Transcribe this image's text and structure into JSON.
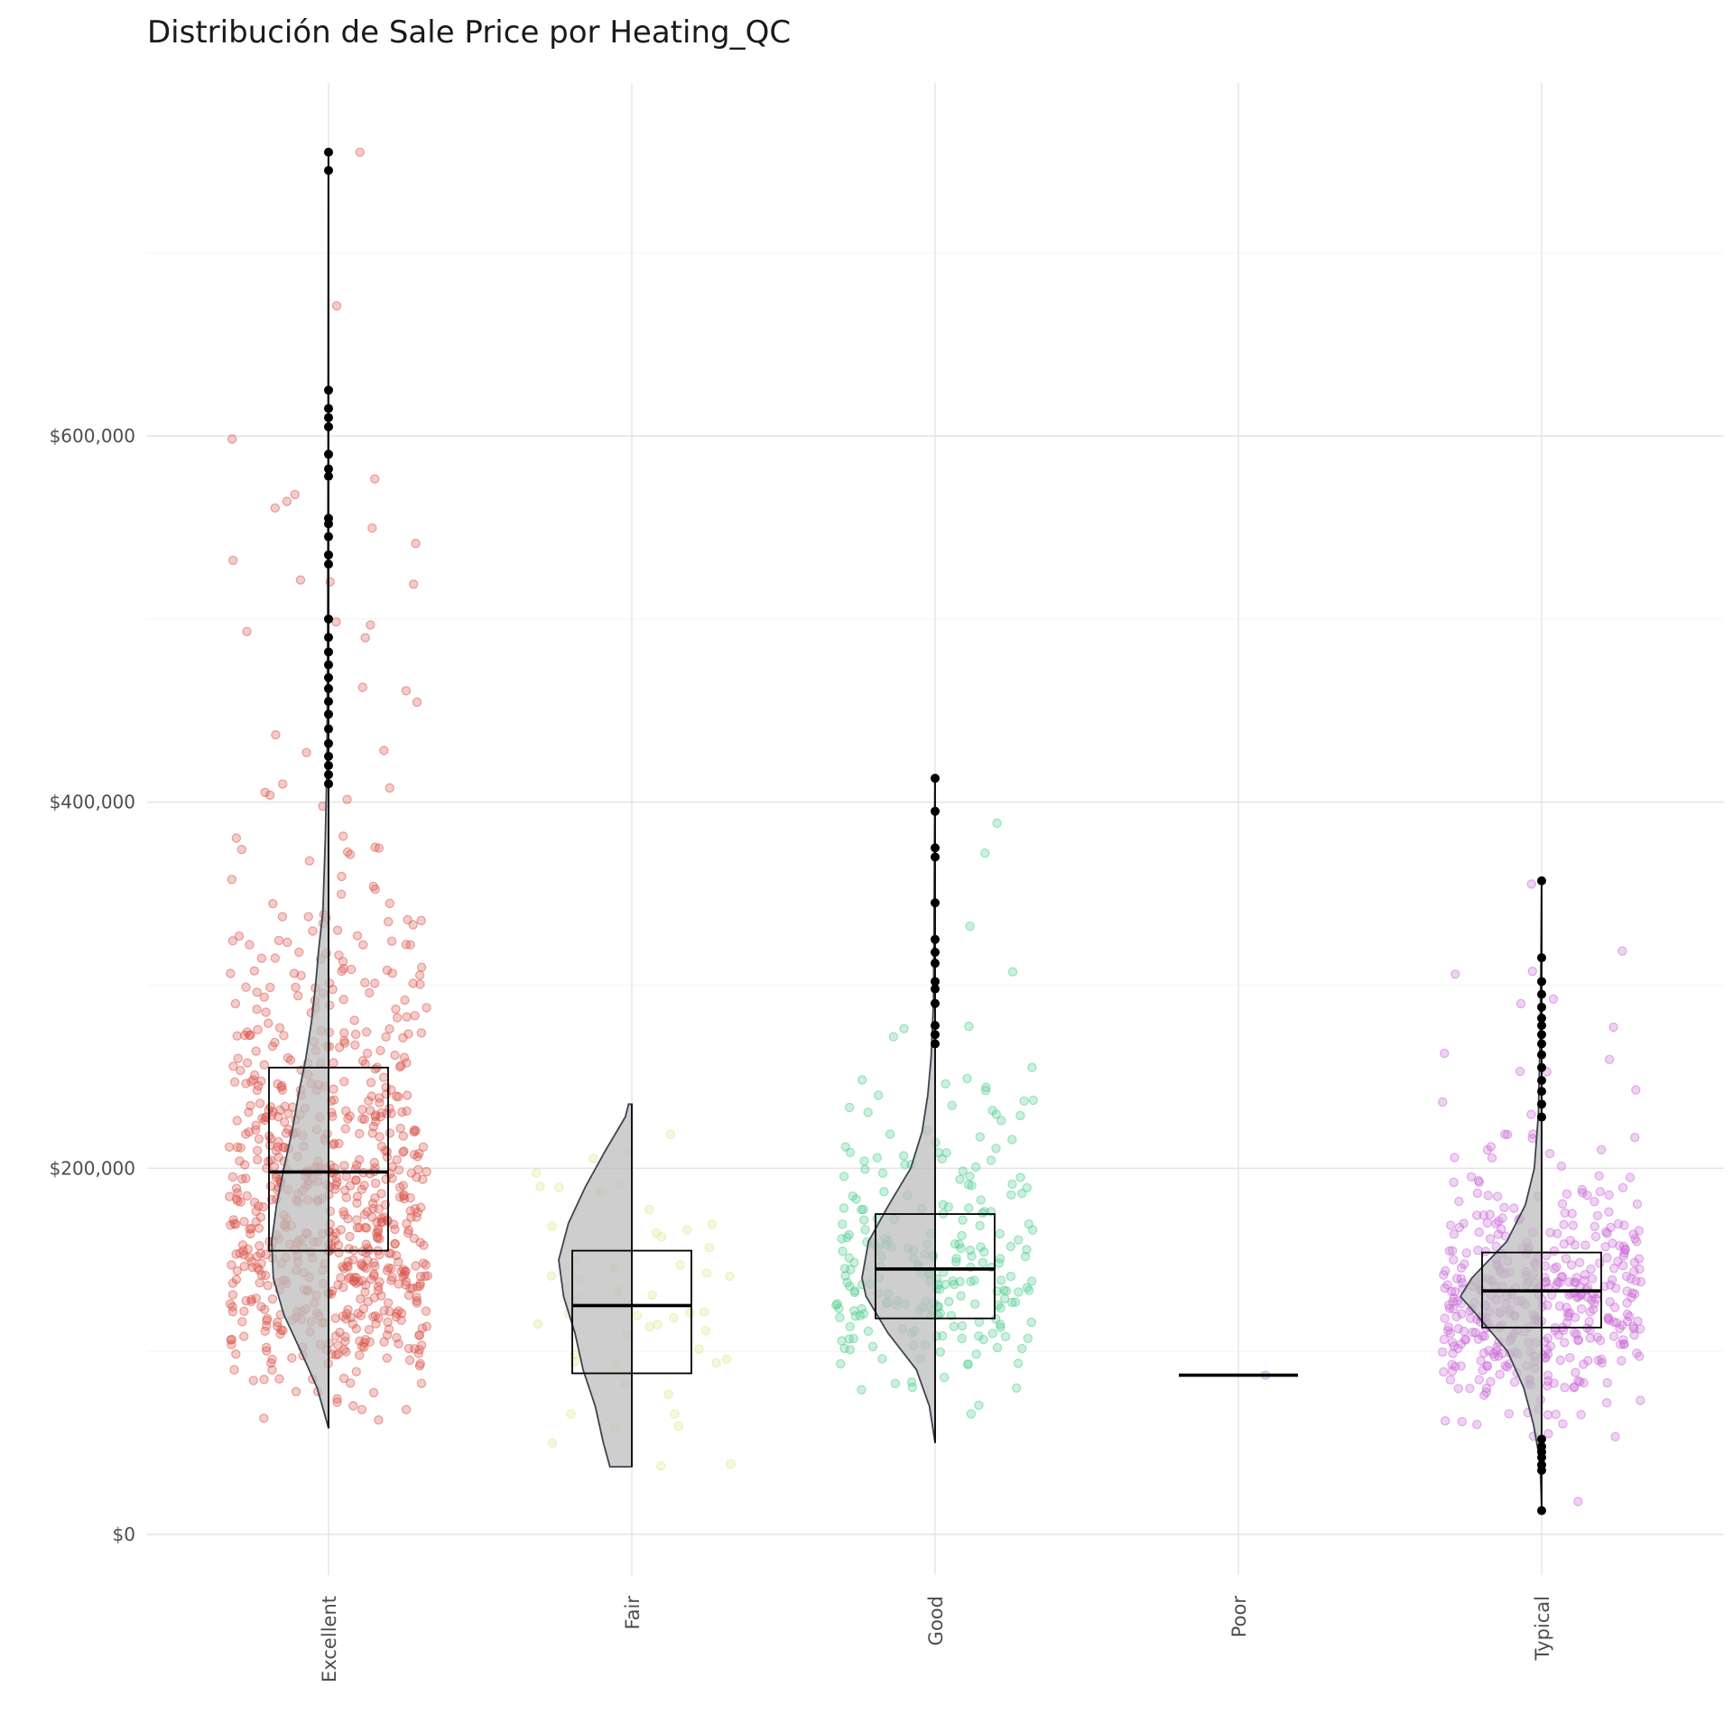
{
  "chart_data": {
    "type": "violin",
    "title": "Distribución de Sale Price por Heating_QC",
    "xlabel": "",
    "ylabel": "",
    "ylim": [
      -30000,
      755000
    ],
    "y_ticks": [
      {
        "value": 0,
        "label": "$0"
      },
      {
        "value": 200000,
        "label": "$200,000"
      },
      {
        "value": 400000,
        "label": "$400,000"
      },
      {
        "value": 600000,
        "label": "$600,000"
      }
    ],
    "y_minor_ticks": [
      100000,
      300000,
      500000,
      700000
    ],
    "grid": true,
    "legend": "none",
    "categories": [
      "Excellent",
      "Fair",
      "Good",
      "Poor",
      "Typical"
    ],
    "series": [
      {
        "category": "Excellent",
        "color": "#d9534a",
        "median": 198000,
        "q1": 155000,
        "q3": 255000,
        "min": 58000,
        "max": 755000,
        "outliers": [
          755000,
          745000,
          625000,
          615000,
          610000,
          605000,
          590000,
          582000,
          578000,
          555000,
          552000,
          545000,
          535000,
          530000,
          500000,
          490000,
          482000,
          475000,
          468000,
          462000,
          455000,
          448000,
          440000,
          432000,
          425000,
          420000,
          415000,
          410000
        ],
        "density": [
          [
            58000,
            0.0
          ],
          [
            80000,
            0.14
          ],
          [
            100000,
            0.34
          ],
          [
            120000,
            0.55
          ],
          [
            140000,
            0.68
          ],
          [
            160000,
            0.7
          ],
          [
            180000,
            0.64
          ],
          [
            200000,
            0.55
          ],
          [
            220000,
            0.45
          ],
          [
            240000,
            0.37
          ],
          [
            260000,
            0.28
          ],
          [
            280000,
            0.21
          ],
          [
            300000,
            0.16
          ],
          [
            320000,
            0.12
          ],
          [
            340000,
            0.07
          ],
          [
            380000,
            0.04
          ],
          [
            420000,
            0.02
          ],
          [
            500000,
            0.011
          ],
          [
            600000,
            0.007
          ],
          [
            755000,
            0.003
          ]
        ]
      },
      {
        "category": "Fair",
        "color": "#d9e88a",
        "median": 125000,
        "q1": 88000,
        "q3": 155000,
        "min": 37000,
        "max": 235000,
        "outliers": [],
        "density": [
          [
            37000,
            0.27
          ],
          [
            50000,
            0.35
          ],
          [
            70000,
            0.45
          ],
          [
            90000,
            0.6
          ],
          [
            110000,
            0.7
          ],
          [
            130000,
            0.84
          ],
          [
            150000,
            0.9
          ],
          [
            170000,
            0.78
          ],
          [
            190000,
            0.57
          ],
          [
            210000,
            0.32
          ],
          [
            228000,
            0.08
          ],
          [
            235000,
            0.04
          ]
        ]
      },
      {
        "category": "Good",
        "color": "#4fce8e",
        "median": 145000,
        "q1": 118000,
        "q3": 175000,
        "min": 50000,
        "max": 413000,
        "outliers": [
          413000,
          395000,
          375000,
          370000,
          345000,
          325000,
          318000,
          312000,
          302000,
          298000,
          290000,
          278000,
          273000,
          268000
        ],
        "density": [
          [
            50000,
            0.0
          ],
          [
            70000,
            0.07
          ],
          [
            90000,
            0.23
          ],
          [
            110000,
            0.58
          ],
          [
            130000,
            0.85
          ],
          [
            140000,
            0.9
          ],
          [
            160000,
            0.82
          ],
          [
            180000,
            0.57
          ],
          [
            200000,
            0.3
          ],
          [
            220000,
            0.16
          ],
          [
            240000,
            0.09
          ],
          [
            260000,
            0.05
          ],
          [
            290000,
            0.02
          ],
          [
            340000,
            0.012
          ],
          [
            380000,
            0.008
          ],
          [
            413000,
            0.003
          ]
        ]
      },
      {
        "category": "Poor",
        "color": "#8fa8d8",
        "median": 87000,
        "q1": 87000,
        "q3": 87000,
        "min": 87000,
        "max": 87000,
        "outliers": [],
        "density": []
      },
      {
        "category": "Typical",
        "color": "#c96ad6",
        "median": 133000,
        "q1": 113000,
        "q3": 154000,
        "min": 13000,
        "max": 357000,
        "outliers": [
          357000,
          315000,
          302000,
          295000,
          288000,
          282000,
          278000,
          273000,
          268000,
          262000,
          255000,
          248000,
          242000,
          235000,
          228000,
          52000,
          48000,
          45000,
          42000,
          38000,
          35000,
          13000
        ],
        "density": [
          [
            13000,
            0.0
          ],
          [
            40000,
            0.02
          ],
          [
            60000,
            0.1
          ],
          [
            80000,
            0.22
          ],
          [
            100000,
            0.42
          ],
          [
            120000,
            0.8
          ],
          [
            130000,
            1.0
          ],
          [
            140000,
            0.86
          ],
          [
            160000,
            0.43
          ],
          [
            180000,
            0.2
          ],
          [
            200000,
            0.09
          ],
          [
            230000,
            0.04
          ],
          [
            270000,
            0.02
          ],
          [
            320000,
            0.008
          ],
          [
            357000,
            0.002
          ]
        ]
      }
    ]
  }
}
